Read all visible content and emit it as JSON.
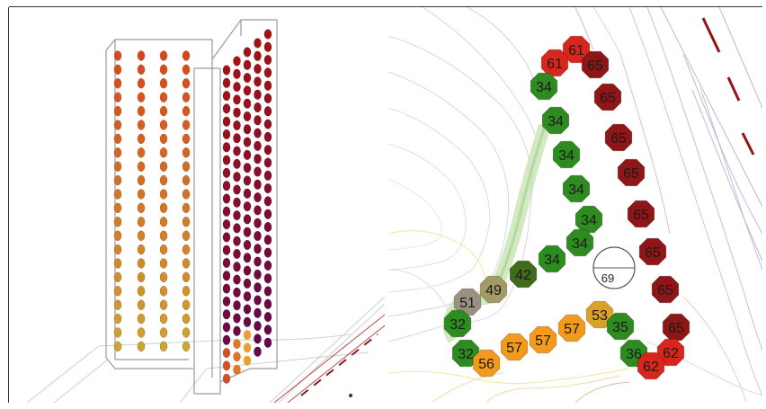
{
  "colors": {
    "green": "#2e8b1f",
    "dark_green": "#3f6b1a",
    "olive": "#a39a66",
    "grey_olive": "#9c9180",
    "orange": "#f29a1c",
    "gold": "#d9a02a",
    "red": "#d9261c",
    "dark_red": "#8e1616"
  },
  "octagons": [
    {
      "label": "61",
      "tone": "red"
    },
    {
      "label": "61",
      "tone": "red"
    },
    {
      "label": "65",
      "tone": "dark_red"
    },
    {
      "label": "34",
      "tone": "green"
    },
    {
      "label": "65",
      "tone": "dark_red"
    },
    {
      "label": "34",
      "tone": "green"
    },
    {
      "label": "65",
      "tone": "dark_red"
    },
    {
      "label": "34",
      "tone": "green"
    },
    {
      "label": "65",
      "tone": "dark_red"
    },
    {
      "label": "34",
      "tone": "green"
    },
    {
      "label": "65",
      "tone": "dark_red"
    },
    {
      "label": "34",
      "tone": "green"
    },
    {
      "label": "34",
      "tone": "green"
    },
    {
      "label": "65",
      "tone": "dark_red"
    },
    {
      "label": "34",
      "tone": "green"
    },
    {
      "label": "42",
      "tone": "dark_green"
    },
    {
      "label": "49",
      "tone": "olive"
    },
    {
      "label": "65",
      "tone": "dark_red"
    },
    {
      "label": "51",
      "tone": "grey_olive"
    },
    {
      "label": "53",
      "tone": "gold"
    },
    {
      "label": "35",
      "tone": "green"
    },
    {
      "label": "32",
      "tone": "green"
    },
    {
      "label": "57",
      "tone": "orange"
    },
    {
      "label": "57",
      "tone": "orange"
    },
    {
      "label": "57",
      "tone": "orange"
    },
    {
      "label": "65",
      "tone": "dark_red"
    },
    {
      "label": "32",
      "tone": "green"
    },
    {
      "label": "56",
      "tone": "orange"
    },
    {
      "label": "36",
      "tone": "green"
    },
    {
      "label": "62",
      "tone": "red"
    },
    {
      "label": "62",
      "tone": "red"
    }
  ],
  "center_marker": {
    "label": "69"
  }
}
